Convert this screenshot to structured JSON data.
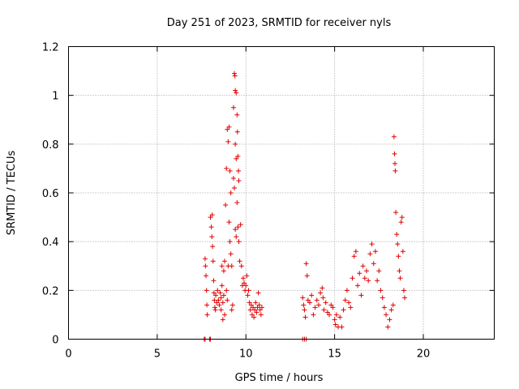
{
  "chart_data": {
    "type": "scatter",
    "title": "Day 251 of 2023, SRMTID for receiver nyls",
    "xlabel": "GPS time / hours",
    "ylabel": "SRMTID / TECUs",
    "xlim": [
      0,
      24
    ],
    "ylim": [
      0,
      1.2
    ],
    "xticks": [
      0,
      5,
      10,
      15,
      20
    ],
    "xtick_labels": [
      "0",
      "5",
      "10",
      "15",
      "20"
    ],
    "yticks": [
      0,
      0.2,
      0.4,
      0.6,
      0.8,
      1,
      1.2
    ],
    "ytick_labels": [
      "0",
      "0.2",
      "0.4",
      "0.6",
      "0.8",
      "1",
      "1.2"
    ],
    "grid": true,
    "marker": "+",
    "series": [
      {
        "name": "SRMTID",
        "color": "#e00000",
        "points": [
          [
            7.65,
            0.0
          ],
          [
            7.7,
            0.0
          ],
          [
            7.95,
            0.0
          ],
          [
            8.0,
            0.0
          ],
          [
            13.2,
            0.0
          ],
          [
            13.3,
            0.0
          ],
          [
            13.4,
            0.0
          ],
          [
            7.7,
            0.33
          ],
          [
            7.72,
            0.3
          ],
          [
            7.75,
            0.26
          ],
          [
            7.78,
            0.2
          ],
          [
            7.8,
            0.14
          ],
          [
            7.82,
            0.1
          ],
          [
            8.0,
            0.5
          ],
          [
            8.05,
            0.46
          ],
          [
            8.08,
            0.42
          ],
          [
            8.1,
            0.51
          ],
          [
            8.12,
            0.38
          ],
          [
            8.15,
            0.32
          ],
          [
            8.18,
            0.24
          ],
          [
            8.2,
            0.19
          ],
          [
            8.22,
            0.16
          ],
          [
            8.25,
            0.13
          ],
          [
            8.28,
            0.12
          ],
          [
            8.3,
            0.18
          ],
          [
            8.35,
            0.15
          ],
          [
            8.4,
            0.2
          ],
          [
            8.45,
            0.16
          ],
          [
            8.5,
            0.14
          ],
          [
            8.55,
            0.19
          ],
          [
            8.6,
            0.17
          ],
          [
            8.65,
            0.22
          ],
          [
            8.7,
            0.15
          ],
          [
            8.75,
            0.18
          ],
          [
            8.6,
            0.12
          ],
          [
            8.7,
            0.08
          ],
          [
            8.8,
            0.1
          ],
          [
            8.9,
            0.2
          ],
          [
            8.95,
            0.16
          ],
          [
            9.0,
            0.3
          ],
          [
            8.65,
            0.3
          ],
          [
            8.75,
            0.28
          ],
          [
            8.8,
            0.32
          ],
          [
            8.85,
            0.55
          ],
          [
            8.9,
            0.7
          ],
          [
            8.95,
            0.86
          ],
          [
            9.0,
            0.81
          ],
          [
            9.05,
            0.87
          ],
          [
            9.1,
            0.69
          ],
          [
            9.15,
            0.6
          ],
          [
            9.2,
            0.3
          ],
          [
            9.05,
            0.48
          ],
          [
            9.1,
            0.4
          ],
          [
            9.15,
            0.35
          ],
          [
            9.2,
            0.12
          ],
          [
            9.25,
            0.14
          ],
          [
            9.3,
            0.95
          ],
          [
            9.35,
            1.09
          ],
          [
            9.38,
            1.08
          ],
          [
            9.4,
            1.02
          ],
          [
            9.45,
            1.01
          ],
          [
            9.5,
            0.92
          ],
          [
            9.52,
            0.85
          ],
          [
            9.55,
            0.75
          ],
          [
            9.58,
            0.69
          ],
          [
            9.6,
            0.65
          ],
          [
            9.4,
            0.8
          ],
          [
            9.45,
            0.74
          ],
          [
            9.5,
            0.56
          ],
          [
            9.55,
            0.46
          ],
          [
            9.6,
            0.4
          ],
          [
            9.65,
            0.32
          ],
          [
            9.7,
            0.47
          ],
          [
            9.75,
            0.3
          ],
          [
            9.8,
            0.22
          ],
          [
            9.3,
            0.66
          ],
          [
            9.35,
            0.62
          ],
          [
            9.4,
            0.45
          ],
          [
            9.45,
            0.42
          ],
          [
            9.85,
            0.25
          ],
          [
            9.9,
            0.23
          ],
          [
            9.95,
            0.2
          ],
          [
            10.0,
            0.22
          ],
          [
            10.05,
            0.26
          ],
          [
            10.1,
            0.18
          ],
          [
            10.15,
            0.2
          ],
          [
            10.2,
            0.15
          ],
          [
            10.25,
            0.12
          ],
          [
            10.3,
            0.14
          ],
          [
            10.35,
            0.1
          ],
          [
            10.4,
            0.13
          ],
          [
            10.45,
            0.09
          ],
          [
            10.5,
            0.12
          ],
          [
            10.55,
            0.15
          ],
          [
            10.6,
            0.11
          ],
          [
            10.65,
            0.13
          ],
          [
            10.7,
            0.19
          ],
          [
            10.75,
            0.14
          ],
          [
            10.8,
            0.12
          ],
          [
            10.85,
            0.1
          ],
          [
            10.9,
            0.13
          ],
          [
            13.2,
            0.17
          ],
          [
            13.25,
            0.14
          ],
          [
            13.3,
            0.12
          ],
          [
            13.35,
            0.09
          ],
          [
            13.4,
            0.31
          ],
          [
            13.45,
            0.26
          ],
          [
            13.5,
            0.16
          ],
          [
            13.6,
            0.15
          ],
          [
            13.7,
            0.18
          ],
          [
            13.8,
            0.1
          ],
          [
            13.9,
            0.13
          ],
          [
            14.0,
            0.16
          ],
          [
            14.1,
            0.14
          ],
          [
            14.2,
            0.19
          ],
          [
            14.3,
            0.21
          ],
          [
            14.35,
            0.17
          ],
          [
            14.4,
            0.12
          ],
          [
            14.5,
            0.15
          ],
          [
            14.6,
            0.11
          ],
          [
            14.7,
            0.1
          ],
          [
            14.8,
            0.14
          ],
          [
            14.9,
            0.13
          ],
          [
            15.0,
            0.08
          ],
          [
            15.05,
            0.06
          ],
          [
            15.1,
            0.1
          ],
          [
            15.2,
            0.05
          ],
          [
            15.3,
            0.09
          ],
          [
            15.4,
            0.05
          ],
          [
            15.5,
            0.12
          ],
          [
            15.6,
            0.16
          ],
          [
            15.7,
            0.2
          ],
          [
            15.8,
            0.15
          ],
          [
            15.9,
            0.13
          ],
          [
            16.0,
            0.25
          ],
          [
            16.1,
            0.34
          ],
          [
            16.2,
            0.36
          ],
          [
            16.3,
            0.22
          ],
          [
            16.4,
            0.27
          ],
          [
            16.5,
            0.18
          ],
          [
            16.6,
            0.3
          ],
          [
            16.7,
            0.25
          ],
          [
            16.8,
            0.28
          ],
          [
            16.9,
            0.24
          ],
          [
            17.0,
            0.35
          ],
          [
            17.1,
            0.39
          ],
          [
            17.2,
            0.31
          ],
          [
            17.3,
            0.36
          ],
          [
            17.4,
            0.24
          ],
          [
            17.5,
            0.28
          ],
          [
            17.6,
            0.2
          ],
          [
            17.7,
            0.17
          ],
          [
            17.8,
            0.13
          ],
          [
            17.9,
            0.1
          ],
          [
            18.0,
            0.05
          ],
          [
            18.1,
            0.08
          ],
          [
            18.2,
            0.12
          ],
          [
            18.3,
            0.14
          ],
          [
            18.35,
            0.83
          ],
          [
            18.38,
            0.76
          ],
          [
            18.4,
            0.72
          ],
          [
            18.42,
            0.69
          ],
          [
            18.45,
            0.52
          ],
          [
            18.5,
            0.43
          ],
          [
            18.55,
            0.39
          ],
          [
            18.6,
            0.34
          ],
          [
            18.65,
            0.28
          ],
          [
            18.7,
            0.25
          ],
          [
            18.75,
            0.48
          ],
          [
            18.8,
            0.5
          ],
          [
            18.85,
            0.36
          ],
          [
            18.9,
            0.2
          ],
          [
            18.95,
            0.17
          ]
        ]
      }
    ]
  }
}
